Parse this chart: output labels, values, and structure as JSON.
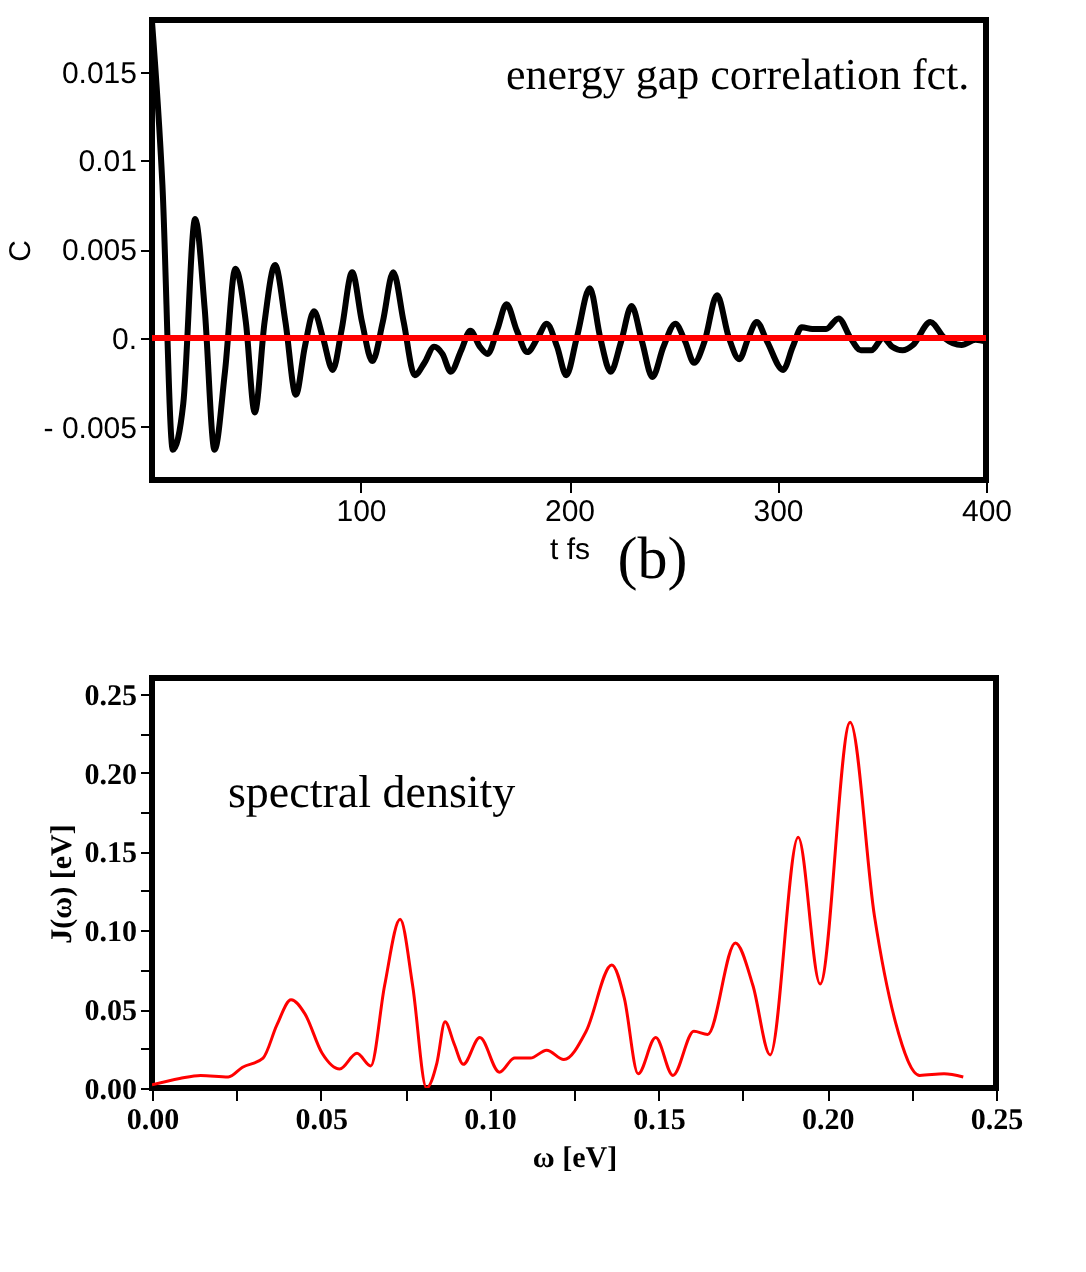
{
  "chart_data": [
    {
      "type": "line",
      "title": "energy gap correlation fct.",
      "xlabel": "t  fs",
      "ylabel": "C",
      "annotations": [
        "(b)"
      ],
      "x": [
        0,
        5,
        10,
        15,
        20.7,
        25.3,
        30,
        35,
        40,
        45,
        49.3,
        54,
        59,
        64,
        69,
        73.3,
        77.7,
        82,
        86.7,
        91,
        96,
        100.7,
        105.7,
        110.7,
        115.7,
        120.7,
        126,
        130.7,
        135.3,
        139.3,
        143.3,
        148.3,
        152.7,
        157.3,
        161,
        165.7,
        170,
        175,
        180,
        185,
        189.3,
        194.3,
        198.7,
        203.7,
        210,
        215,
        220,
        225,
        230,
        235,
        240,
        245.3,
        251,
        255.7,
        260,
        265,
        271,
        276.7,
        281.7,
        286,
        290,
        295,
        302.7,
        307.3,
        311.7,
        316.7,
        323.3,
        329.3,
        335,
        340,
        345,
        350.7,
        355,
        360,
        365,
        373.3,
        380,
        388.3,
        395,
        400
      ],
      "series": [
        {
          "color": "#000000",
          "values": [
            0.0178,
            0.0086,
            -0.0063,
            -0.0037,
            0.0067,
            0.0016,
            -0.0063,
            -0.0019,
            0.0039,
            0.0009,
            -0.0042,
            0.0009,
            0.0041,
            0.0009,
            -0.0032,
            -0.0005,
            0.0015,
            0.0,
            -0.0018,
            0.0005,
            0.0037,
            0.0009,
            -0.0013,
            0.0009,
            0.0037,
            0.0009,
            -0.0021,
            -0.0014,
            -0.0005,
            -0.0009,
            -0.0019,
            -0.0007,
            0.0004,
            -0.0005,
            -0.0009,
            0.0005,
            0.0019,
            0.0004,
            -0.0008,
            0.0,
            0.0008,
            -0.0005,
            -0.0021,
            0.0,
            0.0028,
            0.0,
            -0.0019,
            -0.0002,
            0.0018,
            -0.0002,
            -0.0022,
            -0.0005,
            0.0008,
            -0.0002,
            -0.0014,
            -0.0002,
            0.0024,
            0.0,
            -0.0012,
            0.0,
            0.0009,
            -0.0002,
            -0.0018,
            -0.0005,
            0.0006,
            0.0005,
            0.0005,
            0.0011,
            0.0,
            -0.0007,
            -0.0007,
            0.0,
            -0.0005,
            -0.0007,
            -0.0004,
            0.0009,
            0.0,
            -0.0004,
            -0.0001,
            -0.0002
          ]
        }
      ],
      "xlim": [
        0,
        400
      ],
      "ylim": [
        -0.008,
        0.0179
      ],
      "xticks": [
        100,
        200,
        300,
        400
      ],
      "yticks": [
        {
          "value": -0.005,
          "label": "- 0.005"
        },
        {
          "value": 0,
          "label": "0."
        },
        0.005,
        0.01,
        0.015
      ],
      "ref_lines": [
        {
          "axis": "y",
          "value": 0,
          "color": "#ff0000"
        }
      ],
      "grid": false
    },
    {
      "type": "line",
      "title": "spectral density",
      "xlabel": "ω  [eV]",
      "ylabel": "J(ω)   [eV]",
      "x": [
        0,
        0.0082,
        0.0144,
        0.0226,
        0.0267,
        0.0329,
        0.037,
        0.0412,
        0.0453,
        0.0504,
        0.0556,
        0.0607,
        0.0648,
        0.0689,
        0.0735,
        0.0772,
        0.0813,
        0.0844,
        0.0868,
        0.0895,
        0.0922,
        0.0971,
        0.1029,
        0.1074,
        0.1121,
        0.1169,
        0.122,
        0.1286,
        0.1362,
        0.1399,
        0.144,
        0.1492,
        0.1543,
        0.1605,
        0.1646,
        0.1728,
        0.178,
        0.1831,
        0.1914,
        0.1979,
        0.2068,
        0.214,
        0.2202,
        0.2274,
        0.2346,
        0.2403
      ],
      "series": [
        {
          "color": "#ff0000",
          "values": [
            0.002,
            0.006,
            0.008,
            0.007,
            0.013,
            0.019,
            0.04,
            0.056,
            0.047,
            0.022,
            0.012,
            0.022,
            0.014,
            0.065,
            0.107,
            0.065,
            0.0,
            0.016,
            0.042,
            0.028,
            0.015,
            0.032,
            0.01,
            0.019,
            0.019,
            0.024,
            0.018,
            0.036,
            0.078,
            0.057,
            0.009,
            0.032,
            0.008,
            0.036,
            0.034,
            0.092,
            0.065,
            0.021,
            0.159,
            0.066,
            0.232,
            0.109,
            0.042,
            0.008,
            0.009,
            0.007
          ]
        }
      ],
      "xlim": [
        0,
        0.25
      ],
      "ylim": [
        0,
        0.26
      ],
      "xticks": [
        {
          "value": 0,
          "label": "0.00"
        },
        0.05,
        {
          "value": 0.1,
          "label": "0.10"
        },
        0.15,
        {
          "value": 0.2,
          "label": "0.20"
        },
        0.25,
        {
          "value": 0.025,
          "label": null
        },
        {
          "value": 0.075,
          "label": null
        },
        {
          "value": 0.125,
          "label": null
        },
        {
          "value": 0.175,
          "label": null
        },
        {
          "value": 0.225,
          "label": null
        }
      ],
      "yticks": [
        {
          "value": 0,
          "label": "0.00"
        },
        0.05,
        {
          "value": 0.1,
          "label": "0.10"
        },
        0.15,
        {
          "value": 0.2,
          "label": "0.20"
        },
        0.25,
        {
          "value": 0.025,
          "label": null
        },
        {
          "value": 0.075,
          "label": null
        },
        {
          "value": 0.125,
          "label": null
        },
        {
          "value": 0.175,
          "label": null
        },
        {
          "value": 0.225,
          "label": null
        }
      ],
      "grid": false
    }
  ]
}
